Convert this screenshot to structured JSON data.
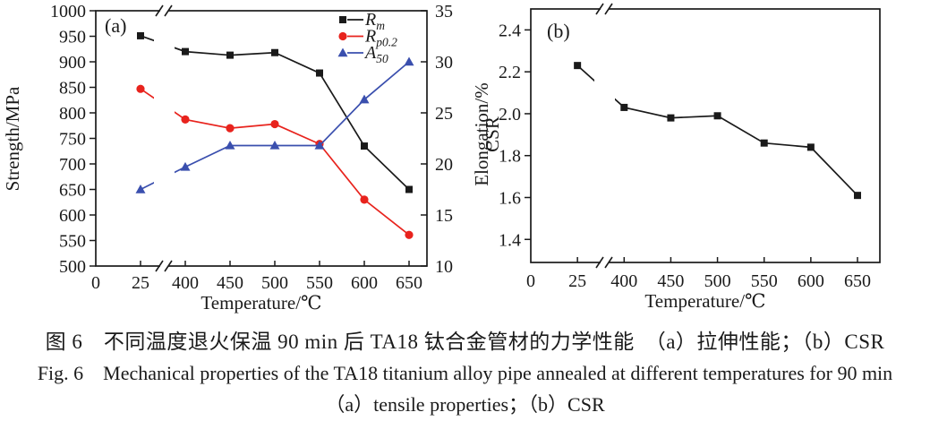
{
  "page": {
    "background": "#ffffff"
  },
  "figure": {
    "caption_zh": "图 6　不同温度退火保温 90 min 后 TA18 钛合金管材的力学性能　（a）拉伸性能；（b）CSR",
    "caption_en": "Fig. 6　Mechanical properties of the TA18 titanium alloy pipe annealed at different temperatures for 90 min",
    "caption_en2": "（a）tensile properties；（b）CSR"
  },
  "chart_data": [
    {
      "type": "line",
      "panel_label": "(a)",
      "xlabel": "Temperature/℃",
      "x_tick_labels": [
        "0",
        "25",
        "400",
        "450",
        "500",
        "550",
        "600",
        "650"
      ],
      "x_axis_break": {
        "between": [
          "25",
          "400"
        ]
      },
      "categories": [
        25,
        400,
        450,
        500,
        550,
        600,
        650
      ],
      "ylabel_left": "Strength/MPa",
      "ylim_left": [
        500,
        1000
      ],
      "yticks_left": [
        "500",
        "550",
        "600",
        "650",
        "700",
        "750",
        "800",
        "850",
        "900",
        "950",
        "1000"
      ],
      "ylabel_right": "Elongation/%",
      "ylim_right": [
        10,
        35
      ],
      "yticks_right": [
        "10",
        "15",
        "20",
        "25",
        "30",
        "35"
      ],
      "grid": false,
      "legend_position": "top-right-inside",
      "series": [
        {
          "name": "Rm",
          "legend_main": "R",
          "legend_sub": "m",
          "axis": "left",
          "color": "#1a1a1a",
          "marker": "square",
          "values": [
            951,
            920,
            913,
            918,
            878,
            735,
            650
          ]
        },
        {
          "name": "Rp0.2",
          "legend_main": "R",
          "legend_sub": "p0.2",
          "axis": "left",
          "color": "#e8231d",
          "marker": "circle",
          "values": [
            847,
            787,
            770,
            778,
            739,
            630,
            561
          ]
        },
        {
          "name": "A50",
          "legend_main": "A",
          "legend_sub": "50",
          "axis": "right",
          "color": "#3a4fae",
          "marker": "triangle",
          "values": [
            17.5,
            19.7,
            21.8,
            21.8,
            21.8,
            26.3,
            30.0
          ]
        }
      ]
    },
    {
      "type": "line",
      "panel_label": "(b)",
      "xlabel": "Temperature/℃",
      "x_tick_labels": [
        "0",
        "25",
        "400",
        "450",
        "500",
        "550",
        "600",
        "650"
      ],
      "x_axis_break": {
        "between": [
          "25",
          "400"
        ]
      },
      "categories": [
        25,
        400,
        450,
        500,
        550,
        600,
        650
      ],
      "ylabel_left": "CSR",
      "ylim_left": [
        1.29,
        2.5
      ],
      "yticks_left": [
        "1.4",
        "1.6",
        "1.8",
        "2.0",
        "2.2",
        "2.4"
      ],
      "grid": false,
      "series": [
        {
          "name": "CSR",
          "axis": "left",
          "color": "#1a1a1a",
          "marker": "square",
          "values": [
            2.23,
            2.03,
            1.98,
            1.99,
            1.86,
            1.84,
            1.61
          ]
        }
      ]
    }
  ]
}
